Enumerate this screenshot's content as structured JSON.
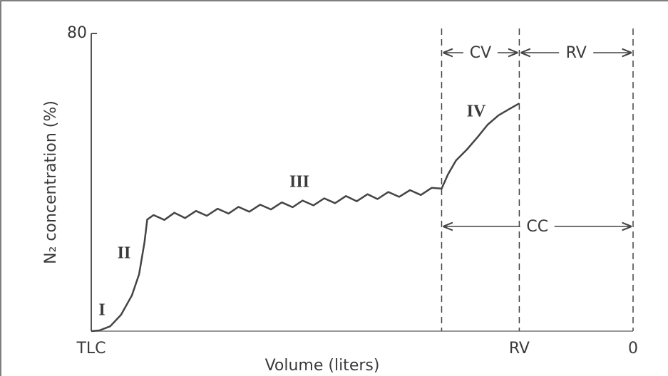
{
  "chart_data": {
    "type": "line",
    "x_label": "Volume (liters)",
    "y_label": "N₂ concentration (%)",
    "xlim": [
      6,
      0
    ],
    "xticks": [
      {
        "value": 6,
        "label": "TLC"
      },
      {
        "value": 1.26,
        "label": "RV"
      },
      0
    ],
    "ylim": [
      0,
      80
    ],
    "yticks": [
      80
    ],
    "series": [
      {
        "color": "#444444",
        "x": [
          6.0,
          5.91,
          5.79,
          5.67,
          5.55,
          5.47,
          5.41,
          5.38,
          5.31,
          5.19,
          5.08,
          4.96,
          4.84,
          4.72,
          4.6,
          4.48,
          4.37,
          4.25,
          4.13,
          4.01,
          3.89,
          3.77,
          3.66,
          3.54,
          3.42,
          3.3,
          3.18,
          3.06,
          2.94,
          2.83,
          2.71,
          2.59,
          2.47,
          2.35,
          2.23,
          2.12,
          2.05,
          1.96,
          1.84,
          1.72,
          1.61,
          1.49,
          1.37,
          1.26
        ],
        "values": [
          0.0,
          0.2,
          1.3,
          4.4,
          9.6,
          15.3,
          23.9,
          30.0,
          31.2,
          29.9,
          31.8,
          30.4,
          32.3,
          31.0,
          32.9,
          31.6,
          33.4,
          32.1,
          34.0,
          32.7,
          34.6,
          33.3,
          35.1,
          33.8,
          35.7,
          34.4,
          36.3,
          34.9,
          36.8,
          35.5,
          37.4,
          36.1,
          37.9,
          36.6,
          38.5,
          38.3,
          42.1,
          45.9,
          48.8,
          52.2,
          55.5,
          58.0,
          59.7,
          61.2
        ]
      }
    ],
    "reference_lines": [
      2.12,
      1.26,
      0
    ],
    "spans": [
      {
        "text": "CV",
        "x": [
          2.12,
          1.26
        ]
      },
      {
        "text": "RV",
        "x": [
          1.26,
          0
        ]
      },
      {
        "text": "CC",
        "x": [
          2.12,
          0
        ]
      }
    ],
    "phase_labels": [
      "I",
      "II",
      "III",
      "IV"
    ]
  }
}
